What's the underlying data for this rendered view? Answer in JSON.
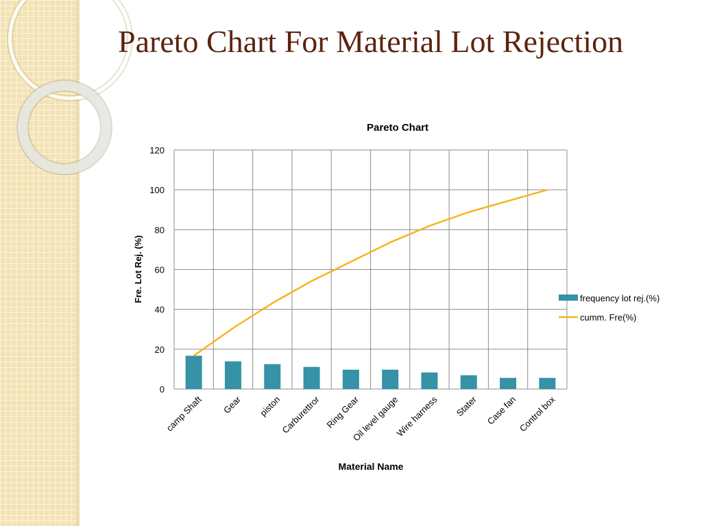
{
  "slide": {
    "title": "Pareto Chart For Material Lot Rejection"
  },
  "theme": {
    "title_color": "#5a2410",
    "bar_color": "#3592a7",
    "line_color": "#f5b51d",
    "grid_color": "#8c8c8c"
  },
  "chart_data": {
    "type": "bar",
    "title": "Pareto Chart",
    "xlabel": "Material Name",
    "ylabel": "Fre. Lot Rej. (%)",
    "ylim": [
      0,
      120
    ],
    "yticks": [
      0,
      20,
      40,
      60,
      80,
      100,
      120
    ],
    "grid": true,
    "legend_position": "right",
    "categories": [
      "camp Shaft",
      "Gear",
      "piston",
      "Carburettror",
      "Ring Gear",
      "Oil level gauge",
      "Wire harness",
      "Stater",
      "Case fan",
      "Control box"
    ],
    "series": [
      {
        "name": "frequency lot rej.(%)",
        "type": "bar",
        "color": "#3592a7",
        "values": [
          16.7,
          13.9,
          12.5,
          11.1,
          9.7,
          9.7,
          8.3,
          6.9,
          5.6,
          5.6
        ]
      },
      {
        "name": "cumm. Fre(%)",
        "type": "line",
        "color": "#f5b51d",
        "values": [
          16.7,
          30.6,
          43.1,
          54.2,
          63.9,
          73.6,
          81.9,
          88.8,
          94.4,
          100
        ]
      }
    ]
  }
}
